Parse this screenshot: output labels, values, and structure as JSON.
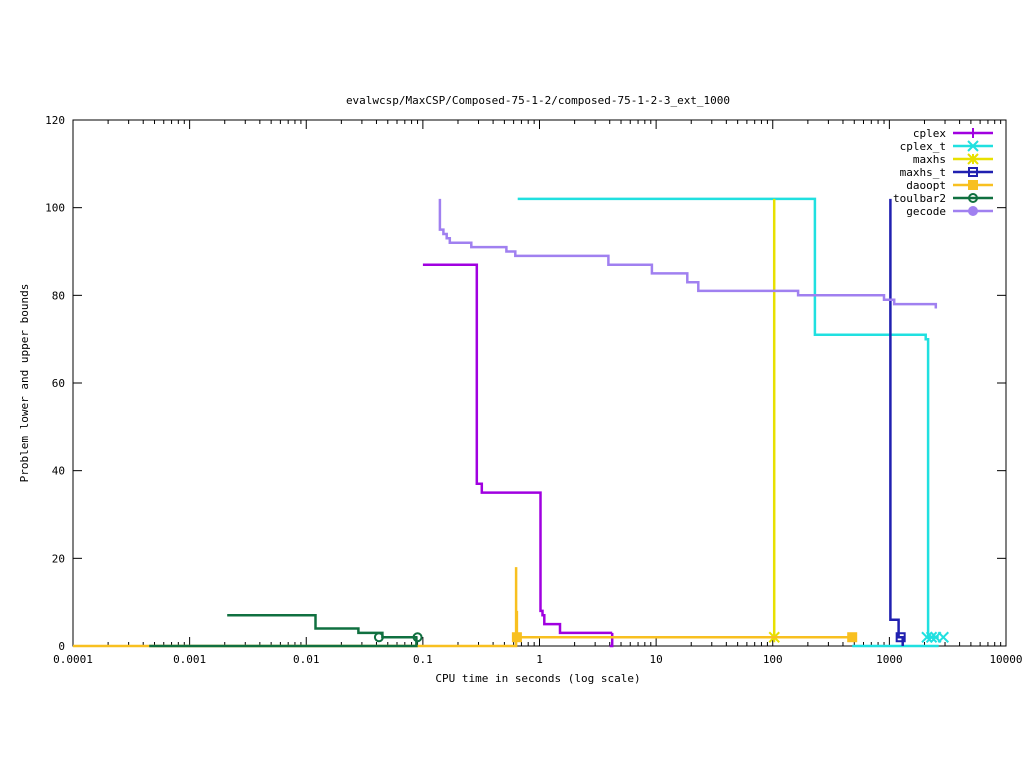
{
  "chart_data": {
    "type": "line",
    "title": "evalwcsp/MaxCSP/Composed-75-1-2/composed-75-1-2-3_ext_1000",
    "xlabel": "CPU time in seconds (log scale)",
    "ylabel": "Problem lower and upper bounds",
    "x_scale": "log",
    "xlim": [
      0.0001,
      10000
    ],
    "ylim": [
      0,
      120
    ],
    "x_ticks": [
      0.0001,
      0.001,
      0.01,
      0.1,
      1,
      10,
      100,
      1000,
      10000
    ],
    "x_tick_labels": [
      "0.0001",
      "0.001",
      "0.01",
      "0.1",
      "1",
      "10",
      "100",
      "1000",
      "10000"
    ],
    "y_ticks": [
      0,
      20,
      40,
      60,
      80,
      100,
      120
    ],
    "y_tick_labels": [
      "0",
      "20",
      "40",
      "60",
      "80",
      "100",
      "120"
    ],
    "grid": false,
    "legend_position": "top-right",
    "series": [
      {
        "name": "cplex",
        "color": "#a000e0",
        "marker": "plus",
        "lines": [
          [
            [
              0.1,
              87
            ],
            [
              0.29,
              87
            ],
            [
              0.29,
              37
            ],
            [
              0.32,
              37
            ],
            [
              0.32,
              35
            ],
            [
              1.02,
              35
            ],
            [
              1.02,
              8
            ],
            [
              1.06,
              8
            ],
            [
              1.06,
              7
            ],
            [
              1.1,
              7
            ],
            [
              1.1,
              5
            ],
            [
              1.5,
              5
            ],
            [
              1.5,
              3
            ],
            [
              4.2,
              3
            ]
          ],
          [
            [
              4.0,
              0
            ],
            [
              4.2,
              0
            ],
            [
              4.2,
              3
            ]
          ]
        ],
        "markers": []
      },
      {
        "name": "cplex_t",
        "color": "#20e0e0",
        "marker": "cross",
        "lines": [
          [
            [
              0.65,
              102
            ],
            [
              230,
              102
            ],
            [
              230,
              71
            ],
            [
              2050,
              71
            ],
            [
              2050,
              70
            ],
            [
              2150,
              70
            ],
            [
              2150,
              2
            ],
            [
              2650,
              2
            ]
          ],
          [
            [
              480,
              0
            ],
            [
              2650,
              0
            ]
          ]
        ],
        "markers": [
          [
            2100,
            2
          ],
          [
            2300,
            2
          ],
          [
            2500,
            2
          ],
          [
            2900,
            2
          ]
        ]
      },
      {
        "name": "maxhs",
        "color": "#e8e000",
        "marker": "star",
        "lines": [
          [
            [
              103,
              102
            ],
            [
              103,
              2
            ]
          ]
        ],
        "markers": [
          [
            103,
            2
          ]
        ]
      },
      {
        "name": "maxhs_t",
        "color": "#2020b0",
        "marker": "box",
        "lines": [
          [
            [
              1020,
              102
            ],
            [
              1020,
              6
            ],
            [
              1200,
              6
            ],
            [
              1200,
              2
            ],
            [
              1300,
              2
            ],
            [
              1300,
              0
            ]
          ]
        ],
        "markers": [
          [
            1250,
            2
          ]
        ]
      },
      {
        "name": "daoopt",
        "color": "#f8c020",
        "marker": "filled-box",
        "lines": [
          [
            [
              0.0001,
              0
            ],
            [
              0.63,
              0
            ],
            [
              0.63,
              18
            ]
          ],
          [
            [
              0.64,
              8
            ],
            [
              0.64,
              2
            ],
            [
              480,
              2
            ]
          ]
        ],
        "markers": [
          [
            0.64,
            2
          ],
          [
            480,
            2
          ]
        ]
      },
      {
        "name": "toulbar2",
        "color": "#107040",
        "marker": "circle",
        "lines": [
          [
            [
              0.0021,
              7
            ],
            [
              0.012,
              7
            ],
            [
              0.012,
              4
            ],
            [
              0.028,
              4
            ],
            [
              0.028,
              3
            ],
            [
              0.045,
              3
            ],
            [
              0.045,
              2
            ],
            [
              0.09,
              2
            ]
          ],
          [
            [
              0.00045,
              0
            ],
            [
              0.088,
              0
            ],
            [
              0.088,
              2
            ]
          ]
        ],
        "markers": [
          [
            0.042,
            2
          ],
          [
            0.09,
            2
          ]
        ]
      },
      {
        "name": "gecode",
        "color": "#a080f0",
        "marker": "filled-circle",
        "lines": [
          [
            [
              0.14,
              102
            ],
            [
              0.14,
              95
            ],
            [
              0.15,
              95
            ],
            [
              0.15,
              94
            ],
            [
              0.16,
              94
            ],
            [
              0.16,
              93
            ],
            [
              0.17,
              93
            ],
            [
              0.17,
              92
            ],
            [
              0.26,
              92
            ],
            [
              0.26,
              91
            ],
            [
              0.52,
              91
            ],
            [
              0.52,
              90
            ],
            [
              0.62,
              90
            ],
            [
              0.62,
              89
            ],
            [
              3.9,
              89
            ],
            [
              3.9,
              87
            ],
            [
              9.2,
              87
            ],
            [
              9.2,
              85
            ],
            [
              18.5,
              85
            ],
            [
              18.5,
              83
            ],
            [
              23,
              83
            ],
            [
              23,
              81
            ],
            [
              165,
              81
            ],
            [
              165,
              80
            ],
            [
              900,
              80
            ],
            [
              900,
              79
            ],
            [
              1100,
              79
            ],
            [
              1100,
              78
            ],
            [
              2500,
              78
            ],
            [
              2500,
              77
            ]
          ]
        ],
        "markers": []
      }
    ]
  }
}
